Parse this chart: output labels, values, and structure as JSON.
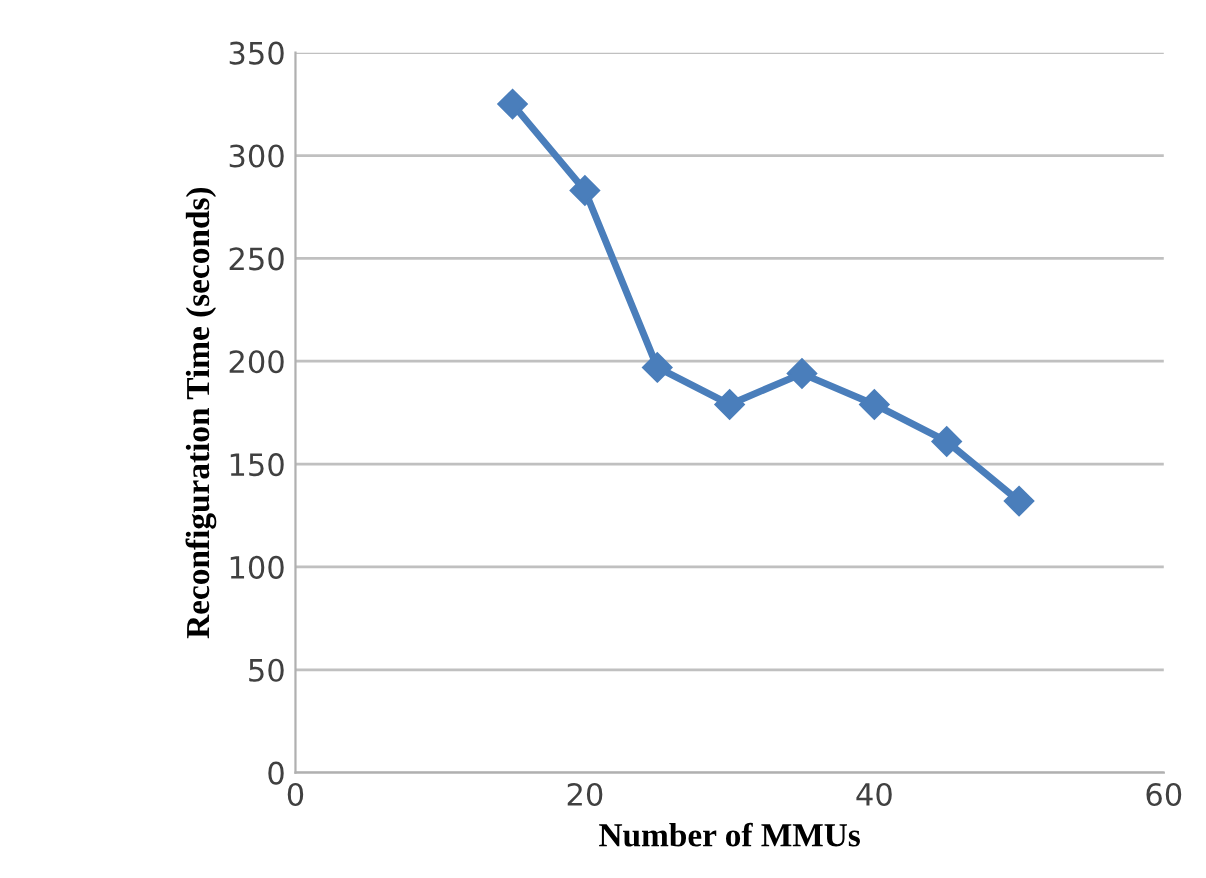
{
  "chart_data": {
    "type": "line",
    "xlabel": "Number of MMUs",
    "ylabel": "Reconfiguration Time (seconds)",
    "x": [
      15,
      20,
      25,
      30,
      35,
      40,
      45,
      50
    ],
    "series": [
      {
        "color": "#4a7ebb",
        "values": [
          325,
          283,
          197,
          179,
          194,
          179,
          161,
          132
        ]
      }
    ],
    "xlim": [
      0,
      60
    ],
    "xticks": [
      0,
      20,
      40,
      60
    ],
    "ylim": [
      0,
      350
    ],
    "yticks": [
      0,
      50,
      100,
      150,
      200,
      250,
      300,
      350
    ],
    "grid": "y",
    "marker": "diamond",
    "line_style": "solid"
  }
}
